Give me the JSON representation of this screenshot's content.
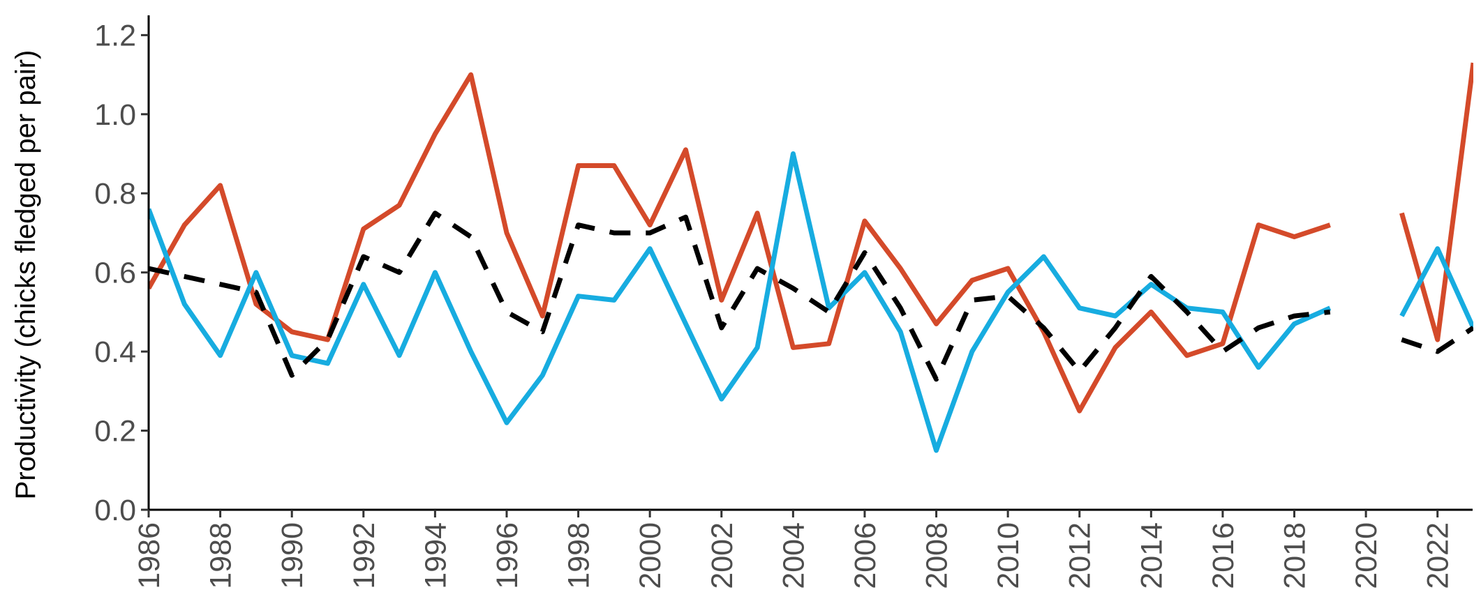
{
  "chart_data": {
    "type": "line",
    "title": "",
    "xlabel": "",
    "ylabel": "Productivity (chicks fledged per pair)",
    "xlim": [
      1986,
      2023
    ],
    "ylim": [
      0,
      1.25
    ],
    "x_ticks": [
      1986,
      1988,
      1990,
      1992,
      1994,
      1996,
      1998,
      2000,
      2002,
      2004,
      2006,
      2008,
      2010,
      2012,
      2014,
      2016,
      2018,
      2020,
      2022
    ],
    "y_ticks": [
      "0.0",
      "0.2",
      "0.4",
      "0.6",
      "0.8",
      "1.0",
      "1.2"
    ],
    "grid": false,
    "legend": "none",
    "x": [
      1986,
      1987,
      1988,
      1989,
      1990,
      1991,
      1992,
      1993,
      1994,
      1995,
      1996,
      1997,
      1998,
      1999,
      2000,
      2001,
      2002,
      2003,
      2004,
      2005,
      2006,
      2007,
      2008,
      2009,
      2010,
      2011,
      2012,
      2013,
      2014,
      2015,
      2016,
      2017,
      2018,
      2019,
      2020,
      2021,
      2022,
      2023
    ],
    "series": [
      {
        "color": "#d44a2a",
        "style": "solid",
        "values": [
          0.56,
          0.72,
          0.82,
          0.52,
          0.45,
          0.43,
          0.71,
          0.77,
          0.95,
          1.1,
          0.7,
          0.49,
          0.87,
          0.87,
          0.72,
          0.91,
          0.53,
          0.75,
          0.41,
          0.42,
          0.73,
          0.61,
          0.47,
          0.58,
          0.61,
          0.45,
          0.25,
          0.41,
          0.5,
          0.39,
          0.42,
          0.72,
          0.69,
          0.72,
          null,
          0.75,
          0.43,
          1.13
        ]
      },
      {
        "color": "#17ace0",
        "style": "solid",
        "values": [
          0.76,
          0.52,
          0.39,
          0.6,
          0.39,
          0.37,
          0.57,
          0.39,
          0.6,
          0.4,
          0.22,
          0.34,
          0.54,
          0.53,
          0.66,
          0.47,
          0.28,
          0.41,
          0.9,
          0.51,
          0.6,
          0.45,
          0.15,
          0.4,
          0.55,
          0.64,
          0.51,
          0.49,
          0.57,
          0.51,
          0.5,
          0.36,
          0.47,
          0.51,
          null,
          0.49,
          0.66,
          0.46
        ]
      },
      {
        "color": "#000000",
        "style": "dashed",
        "values": [
          0.61,
          0.59,
          0.57,
          0.55,
          0.34,
          0.43,
          0.64,
          0.6,
          0.75,
          0.69,
          0.5,
          0.45,
          0.72,
          0.7,
          0.7,
          0.74,
          0.46,
          0.61,
          0.56,
          0.5,
          0.65,
          0.51,
          0.33,
          0.53,
          0.54,
          0.46,
          0.35,
          0.46,
          0.59,
          0.5,
          0.4,
          0.46,
          0.49,
          0.5,
          null,
          0.43,
          0.4,
          0.46
        ]
      }
    ]
  }
}
